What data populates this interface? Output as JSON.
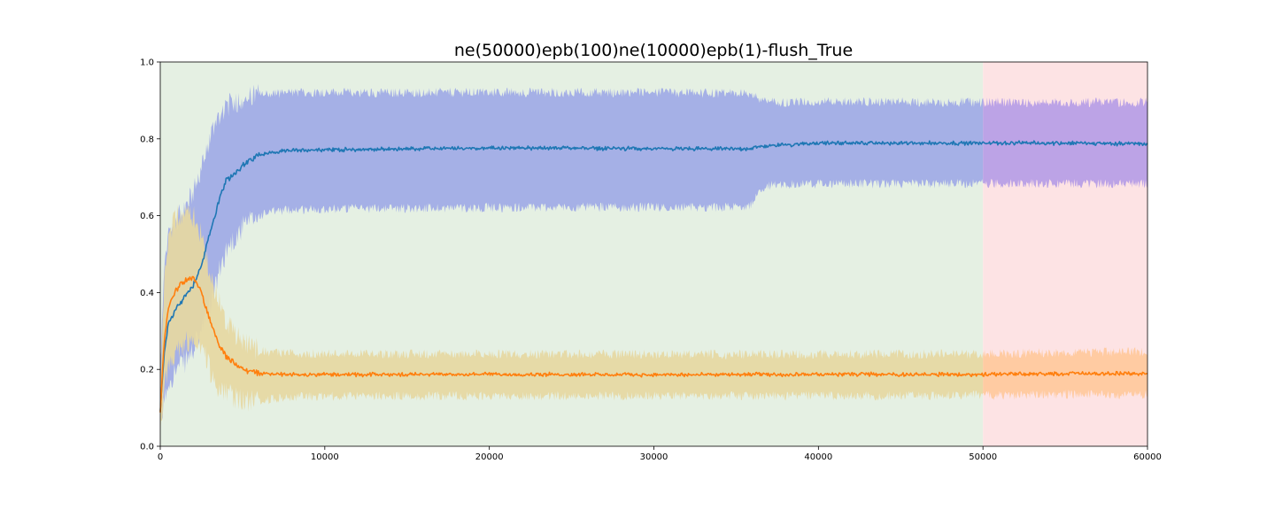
{
  "chart_data": {
    "type": "line",
    "title": "ne(50000)epb(100)ne(10000)epb(1)-flush_True",
    "xlabel": "",
    "ylabel": "",
    "xlim": [
      0,
      60000
    ],
    "ylim": [
      0.0,
      1.0
    ],
    "x_ticks": [
      0,
      10000,
      20000,
      30000,
      40000,
      50000,
      60000
    ],
    "x_tick_labels": [
      "0",
      "10000",
      "20000",
      "30000",
      "40000",
      "50000",
      "60000"
    ],
    "y_ticks": [
      0.0,
      0.2,
      0.4,
      0.6,
      0.8,
      1.0
    ],
    "y_tick_labels": [
      "0.0",
      "0.2",
      "0.4",
      "0.6",
      "0.8",
      "1.0"
    ],
    "grid": false,
    "legend": "none",
    "background_regions": [
      {
        "x_start": 0,
        "x_end": 50000,
        "color": "#e5f0e3"
      },
      {
        "x_start": 50000,
        "x_end": 60000,
        "color": "#fde3e4"
      }
    ],
    "x": [
      0,
      250,
      500,
      1000,
      1500,
      2000,
      2500,
      3000,
      3500,
      4000,
      5000,
      6000,
      7000,
      8000,
      10000,
      12000,
      15000,
      20000,
      25000,
      30000,
      35000,
      36000,
      36500,
      37000,
      40000,
      45000,
      50000,
      55000,
      60000
    ],
    "series": [
      {
        "color": "#1f77b4",
        "band_color": "#9faae6",
        "band_color_right": "#b69de6",
        "mean": [
          0.09,
          0.25,
          0.32,
          0.36,
          0.39,
          0.42,
          0.47,
          0.55,
          0.63,
          0.69,
          0.73,
          0.76,
          0.765,
          0.77,
          0.772,
          0.772,
          0.774,
          0.776,
          0.776,
          0.774,
          0.774,
          0.775,
          0.78,
          0.782,
          0.789,
          0.789,
          0.789,
          0.789,
          0.787
        ],
        "upper": [
          0.22,
          0.45,
          0.55,
          0.59,
          0.62,
          0.66,
          0.72,
          0.8,
          0.86,
          0.885,
          0.905,
          0.915,
          0.918,
          0.92,
          0.921,
          0.92,
          0.92,
          0.921,
          0.921,
          0.92,
          0.918,
          0.918,
          0.9,
          0.895,
          0.896,
          0.896,
          0.895,
          0.895,
          0.895
        ],
        "lower": [
          0.05,
          0.12,
          0.17,
          0.2,
          0.22,
          0.25,
          0.3,
          0.36,
          0.44,
          0.51,
          0.57,
          0.6,
          0.612,
          0.616,
          0.618,
          0.619,
          0.62,
          0.621,
          0.622,
          0.622,
          0.622,
          0.63,
          0.672,
          0.679,
          0.683,
          0.683,
          0.684,
          0.684,
          0.682
        ]
      },
      {
        "color": "#ff7f0e",
        "band_color": "#e6d8a2",
        "band_color_right": "#ffc99c",
        "mean": [
          0.09,
          0.28,
          0.36,
          0.41,
          0.43,
          0.44,
          0.4,
          0.33,
          0.27,
          0.235,
          0.2,
          0.19,
          0.188,
          0.187,
          0.187,
          0.186,
          0.187,
          0.187,
          0.187,
          0.186,
          0.186,
          0.187,
          0.187,
          0.187,
          0.187,
          0.187,
          0.187,
          0.189,
          0.189
        ],
        "upper": [
          0.16,
          0.43,
          0.55,
          0.6,
          0.61,
          0.6,
          0.55,
          0.46,
          0.38,
          0.33,
          0.27,
          0.25,
          0.242,
          0.241,
          0.241,
          0.24,
          0.24,
          0.24,
          0.24,
          0.239,
          0.239,
          0.239,
          0.239,
          0.239,
          0.239,
          0.24,
          0.24,
          0.245,
          0.245
        ],
        "lower": [
          0.05,
          0.15,
          0.2,
          0.24,
          0.27,
          0.28,
          0.26,
          0.2,
          0.155,
          0.135,
          0.12,
          0.118,
          0.124,
          0.128,
          0.13,
          0.13,
          0.131,
          0.131,
          0.131,
          0.131,
          0.131,
          0.131,
          0.131,
          0.131,
          0.131,
          0.132,
          0.132,
          0.135,
          0.135
        ]
      }
    ]
  }
}
